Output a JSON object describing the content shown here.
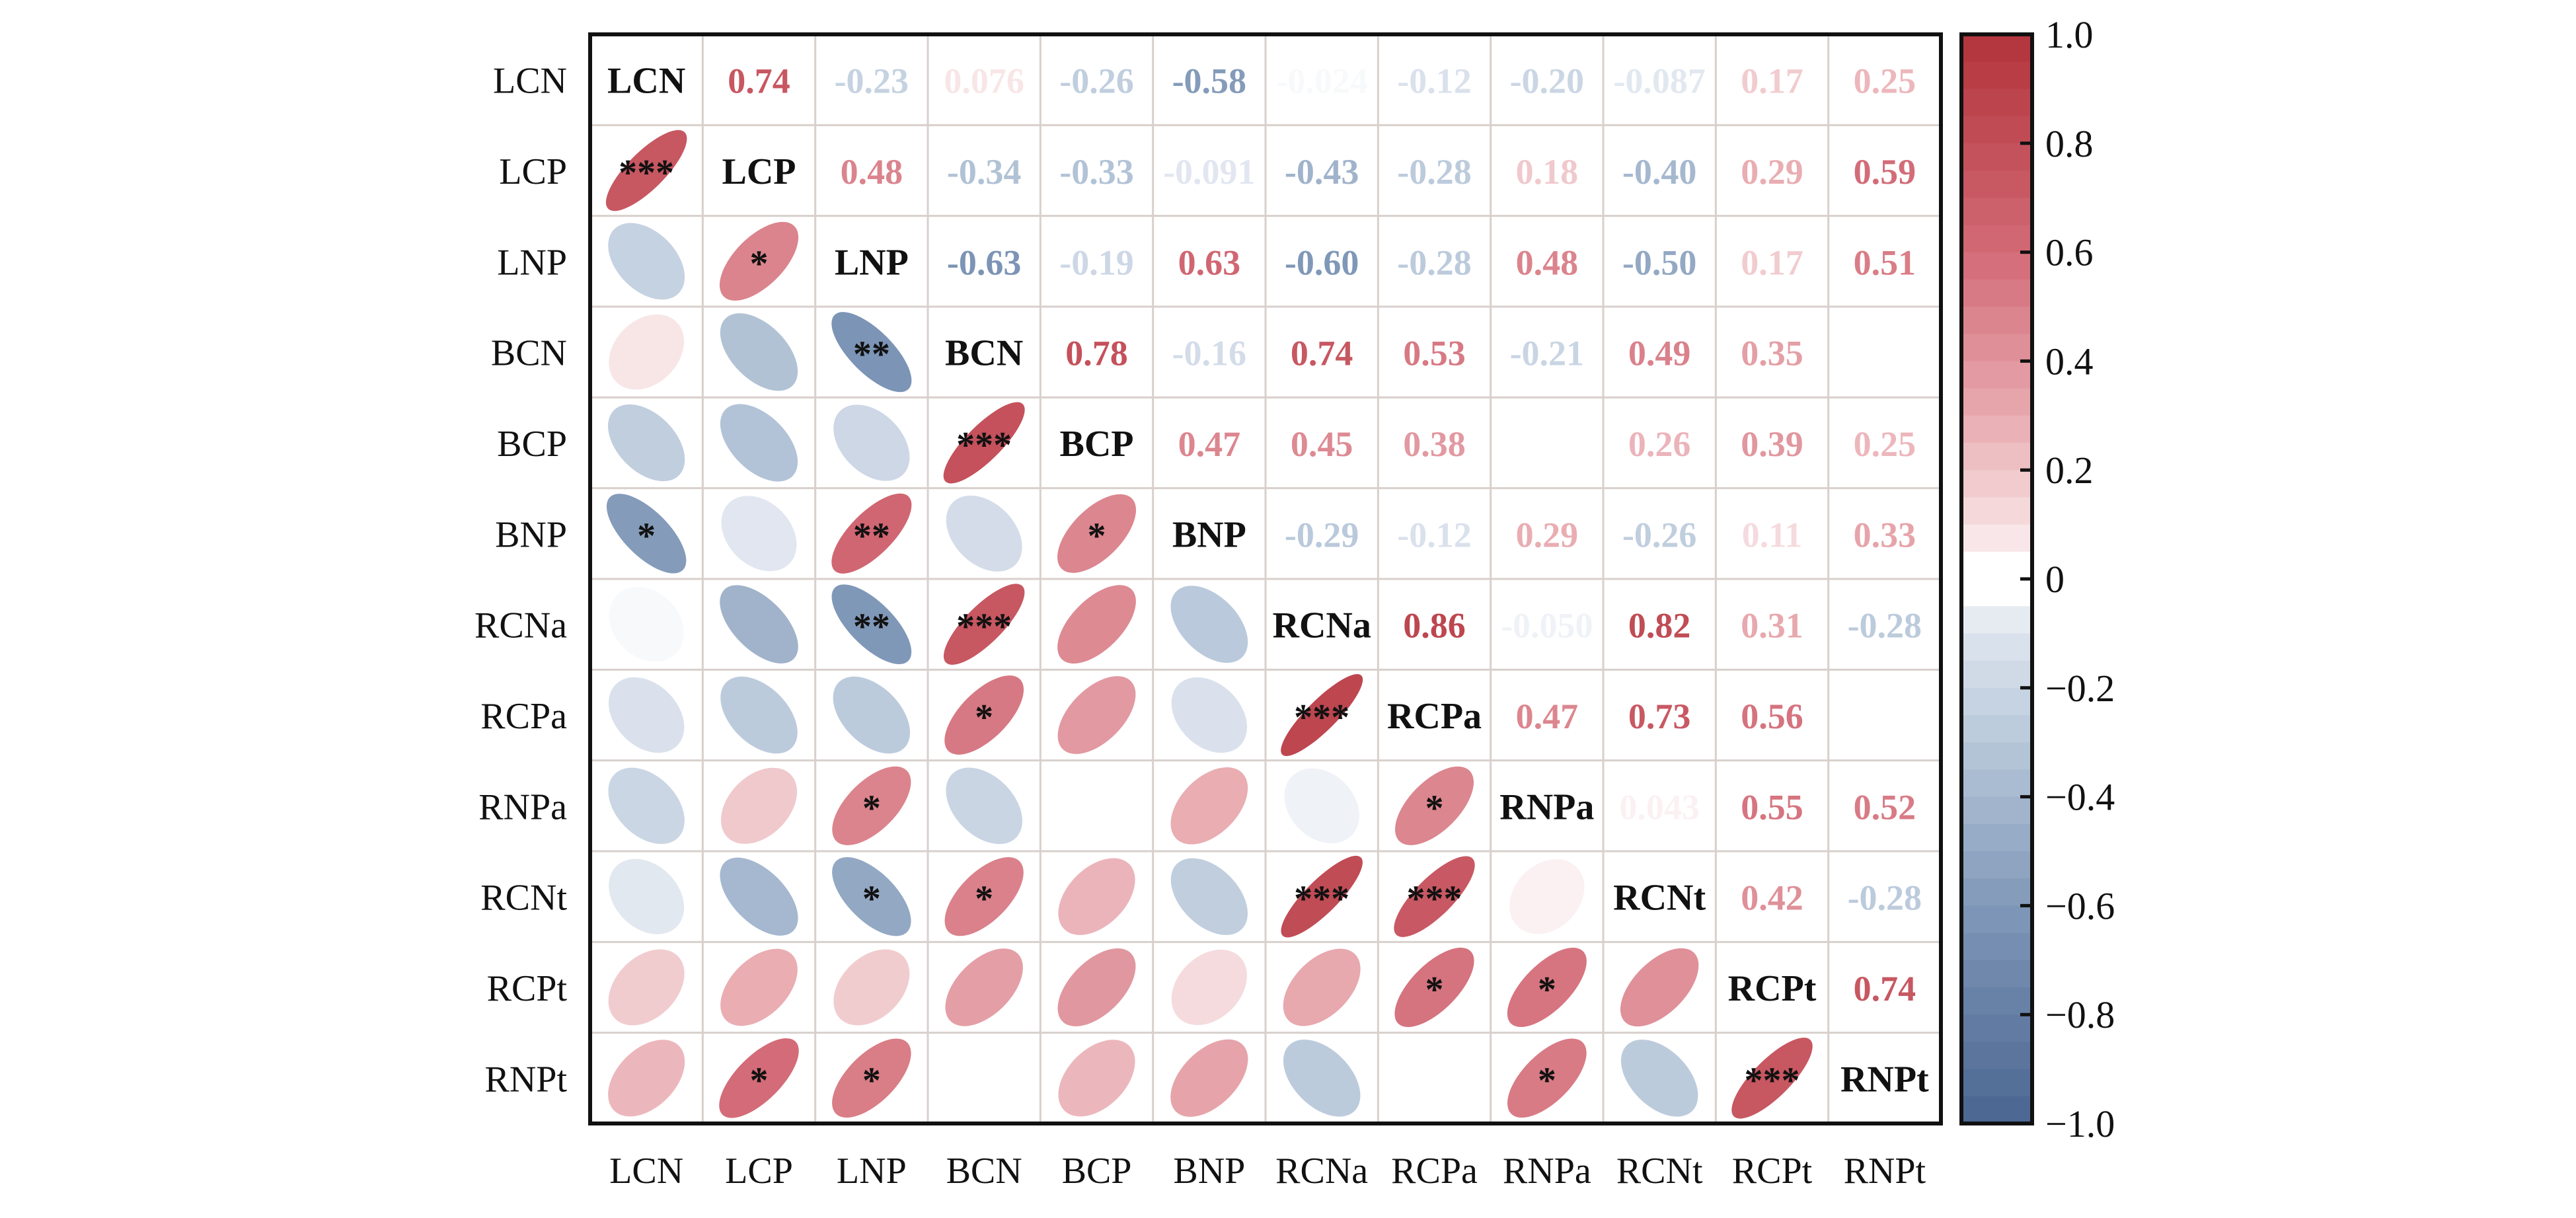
{
  "chart_data": {
    "type": "heatmap",
    "subtype": "correlation-matrix-mixed",
    "title": "",
    "variables": [
      "LCN",
      "LCP",
      "LNP",
      "BCN",
      "BCP",
      "BNP",
      "RCNa",
      "RCPa",
      "RNPa",
      "RCNt",
      "RCPt",
      "RNPt"
    ],
    "upper_display": "number",
    "lower_display": "ellipse",
    "diagonal_display": "variable-name",
    "matrix": [
      [
        1,
        0.74,
        -0.23,
        0.076,
        -0.26,
        -0.58,
        -0.024,
        -0.12,
        -0.2,
        -0.087,
        0.17,
        0.25
      ],
      [
        0.74,
        1,
        0.48,
        -0.34,
        -0.33,
        -0.091,
        -0.43,
        -0.28,
        0.18,
        -0.4,
        0.29,
        0.59
      ],
      [
        -0.23,
        0.48,
        1,
        -0.63,
        -0.19,
        0.63,
        -0.6,
        -0.28,
        0.48,
        -0.5,
        0.17,
        0.51
      ],
      [
        0.076,
        -0.34,
        -0.63,
        1,
        0.78,
        -0.16,
        0.74,
        0.53,
        -0.21,
        0.49,
        0.35,
        null
      ],
      [
        -0.26,
        -0.33,
        -0.19,
        0.78,
        1,
        0.47,
        0.45,
        0.38,
        null,
        0.26,
        0.39,
        0.25
      ],
      [
        -0.58,
        -0.091,
        0.63,
        -0.16,
        0.47,
        1,
        -0.29,
        -0.12,
        0.29,
        -0.26,
        0.11,
        0.33
      ],
      [
        -0.024,
        -0.43,
        -0.6,
        0.74,
        0.45,
        -0.29,
        1,
        0.86,
        -0.05,
        0.82,
        0.31,
        -0.28
      ],
      [
        -0.12,
        -0.28,
        -0.28,
        0.53,
        0.38,
        -0.12,
        0.86,
        1,
        0.47,
        0.73,
        0.56,
        null
      ],
      [
        -0.2,
        0.18,
        0.48,
        -0.21,
        null,
        0.29,
        -0.05,
        0.47,
        1,
        0.043,
        0.55,
        0.52
      ],
      [
        -0.087,
        -0.4,
        -0.5,
        0.49,
        0.26,
        -0.26,
        0.82,
        0.73,
        0.043,
        1,
        0.42,
        -0.28
      ],
      [
        0.17,
        0.29,
        0.17,
        0.35,
        0.39,
        0.11,
        0.31,
        0.56,
        0.55,
        0.42,
        1,
        0.74
      ],
      [
        0.25,
        0.59,
        0.51,
        null,
        0.25,
        0.33,
        -0.28,
        null,
        0.52,
        -0.28,
        0.74,
        1
      ]
    ],
    "labels_text": [
      [
        null,
        "0.74",
        "-0.23",
        "0.076",
        "-0.26",
        "-0.58",
        "-0.024",
        "-0.12",
        "-0.20",
        "-0.087",
        "0.17",
        "0.25"
      ],
      [
        null,
        null,
        "0.48",
        "-0.34",
        "-0.33",
        "-0.091",
        "-0.43",
        "-0.28",
        "0.18",
        "-0.40",
        "0.29",
        "0.59"
      ],
      [
        null,
        null,
        null,
        "-0.63",
        "-0.19",
        "0.63",
        "-0.60",
        "-0.28",
        "0.48",
        "-0.50",
        "0.17",
        "0.51"
      ],
      [
        null,
        null,
        null,
        null,
        "0.78",
        "-0.16",
        "0.74",
        "0.53",
        "-0.21",
        "0.49",
        "0.35",
        null
      ],
      [
        null,
        null,
        null,
        null,
        null,
        "0.47",
        "0.45",
        "0.38",
        null,
        "0.26",
        "0.39",
        "0.25"
      ],
      [
        null,
        null,
        null,
        null,
        null,
        null,
        "-0.29",
        "-0.12",
        "0.29",
        "-0.26",
        "0.11",
        "0.33"
      ],
      [
        null,
        null,
        null,
        null,
        null,
        null,
        null,
        "0.86",
        "-0.050",
        "0.82",
        "0.31",
        "-0.28"
      ],
      [
        null,
        null,
        null,
        null,
        null,
        null,
        null,
        null,
        "0.47",
        "0.73",
        "0.56",
        null
      ],
      [
        null,
        null,
        null,
        null,
        null,
        null,
        null,
        null,
        null,
        "0.043",
        "0.55",
        "0.52"
      ],
      [
        null,
        null,
        null,
        null,
        null,
        null,
        null,
        null,
        null,
        null,
        "0.42",
        "-0.28"
      ],
      [
        null,
        null,
        null,
        null,
        null,
        null,
        null,
        null,
        null,
        null,
        null,
        "0.74"
      ],
      [
        null,
        null,
        null,
        null,
        null,
        null,
        null,
        null,
        null,
        null,
        null,
        null
      ]
    ],
    "significance": [
      {
        "row": "LCP",
        "col": "LCN",
        "stars": "***"
      },
      {
        "row": "LNP",
        "col": "LCP",
        "stars": "*"
      },
      {
        "row": "BCN",
        "col": "LNP",
        "stars": "**"
      },
      {
        "row": "BCP",
        "col": "BCN",
        "stars": "***"
      },
      {
        "row": "BNP",
        "col": "LCN",
        "stars": "*"
      },
      {
        "row": "BNP",
        "col": "LNP",
        "stars": "**"
      },
      {
        "row": "BNP",
        "col": "BCP",
        "stars": "*"
      },
      {
        "row": "RCNa",
        "col": "LNP",
        "stars": "**"
      },
      {
        "row": "RCNa",
        "col": "BCN",
        "stars": "***"
      },
      {
        "row": "RCPa",
        "col": "BCN",
        "stars": "*"
      },
      {
        "row": "RCPa",
        "col": "RCNa",
        "stars": "***"
      },
      {
        "row": "RNPa",
        "col": "LNP",
        "stars": "*"
      },
      {
        "row": "RNPa",
        "col": "RCPa",
        "stars": "*"
      },
      {
        "row": "RCNt",
        "col": "LNP",
        "stars": "*"
      },
      {
        "row": "RCNt",
        "col": "BCN",
        "stars": "*"
      },
      {
        "row": "RCNt",
        "col": "RCNa",
        "stars": "***"
      },
      {
        "row": "RCNt",
        "col": "RCPa",
        "stars": "***"
      },
      {
        "row": "RCPt",
        "col": "RCPa",
        "stars": "*"
      },
      {
        "row": "RCPt",
        "col": "RNPa",
        "stars": "*"
      },
      {
        "row": "RNPt",
        "col": "LCP",
        "stars": "*"
      },
      {
        "row": "RNPt",
        "col": "LNP",
        "stars": "*"
      },
      {
        "row": "RNPt",
        "col": "RNPa",
        "stars": "*"
      },
      {
        "row": "RNPt",
        "col": "RCPt",
        "stars": "***"
      }
    ],
    "colorbar": {
      "range": [
        -1.0,
        1.0
      ],
      "ticks": [
        1.0,
        0.8,
        0.6,
        0.4,
        0.2,
        0,
        -0.2,
        -0.4,
        -0.6,
        -0.8,
        -1.0
      ],
      "tick_labels": [
        "1.0",
        "0.8",
        "0.6",
        "0.4",
        "0.2",
        "0",
        "−0.2",
        "−0.4",
        "−0.6",
        "−0.8",
        "−1.0"
      ],
      "placement": "right"
    },
    "colors": {
      "positive_max": "#b2333a",
      "positive_mid": "#d98088",
      "neutral": "#ffffff",
      "negative_mid": "#a3b5cc",
      "negative_max": "#4a6590",
      "grid": "#d8d0cc",
      "frame": "#111111"
    },
    "xlabel": "",
    "ylabel": "",
    "grid": true
  }
}
